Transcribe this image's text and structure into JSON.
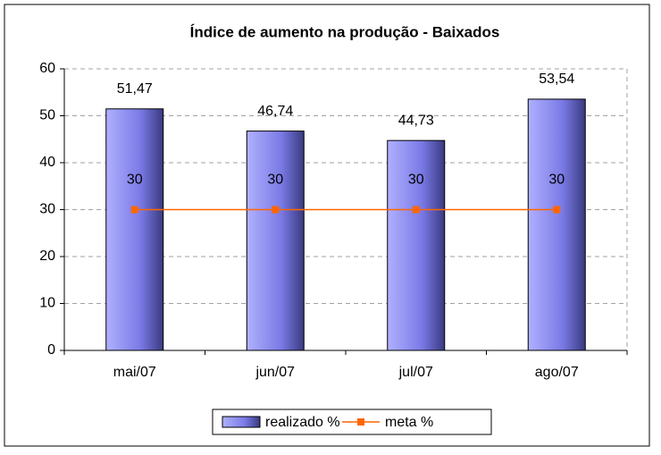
{
  "chart_data": {
    "type": "bar",
    "title": "Índice de aumento na produção - Baixados",
    "categories": [
      "mai/07",
      "jun/07",
      "jul/07",
      "ago/07"
    ],
    "series": [
      {
        "name": "realizado %",
        "type": "bar",
        "color": "#8080ff",
        "values": [
          51.47,
          46.74,
          44.73,
          53.54
        ],
        "value_labels": [
          "51,47",
          "46,74",
          "44,73",
          "53,54"
        ]
      },
      {
        "name": "meta %",
        "type": "line",
        "color": "#ff6600",
        "values": [
          30,
          30,
          30,
          30
        ]
      }
    ],
    "ylim": [
      0,
      60
    ],
    "yticks": [
      0,
      10,
      20,
      30,
      40,
      50,
      60
    ],
    "grid": true,
    "legend": "bottom"
  }
}
